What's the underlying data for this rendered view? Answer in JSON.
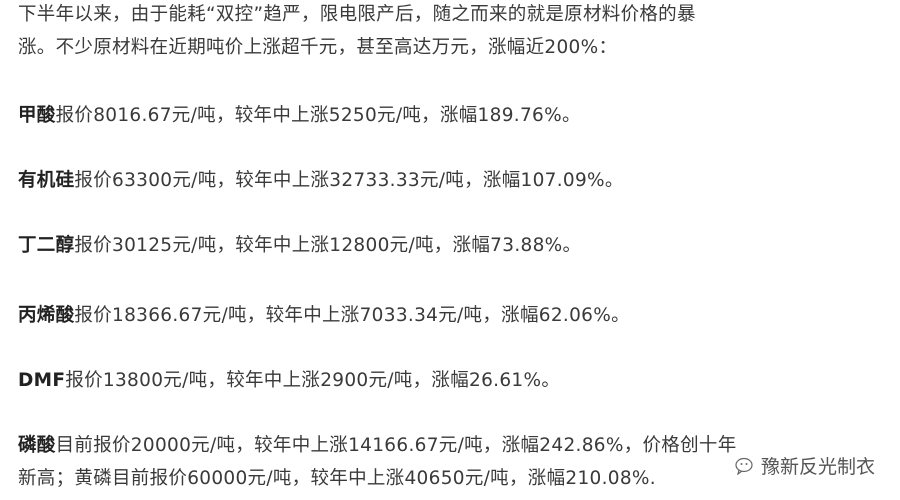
{
  "intro": {
    "line1": "下半年以来，由于能耗“双控”趋严，限电限产后，随之而来的就是原材料价格的暴",
    "line2": "涨。不少原材料在近期吨价上涨超千元，甚至高达万元，涨幅近200%："
  },
  "items": [
    {
      "name": "甲酸",
      "text": "报价8016.67元/吨，较年中上涨5250元/吨，涨幅189.76%。"
    },
    {
      "name": "有机硅",
      "text": "报价63300元/吨，较年中上涨32733.33元/吨，涨幅107.09%。"
    },
    {
      "name": "丁二醇",
      "text": "报价30125元/吨，较年中上涨12800元/吨，涨幅73.88%。"
    },
    {
      "name": "丙烯酸",
      "text": "报价18366.67元/吨，较年中上涨7033.34元/吨，涨幅62.06%。"
    },
    {
      "name": "DMF",
      "text": "报价13800元/吨，较年中上涨2900元/吨，涨幅26.61%。"
    },
    {
      "name": "磷酸",
      "text": "目前报价20000元/吨，较年中上涨14166.67元/吨，涨幅242.86%，价格创十年",
      "text2": "新高；黄磷目前报价60000元/吨，较年中上涨40650元/吨，涨幅210.08%."
    }
  ],
  "watermark": {
    "text": "豫新反光制衣",
    "icon": "wechat-icon"
  }
}
